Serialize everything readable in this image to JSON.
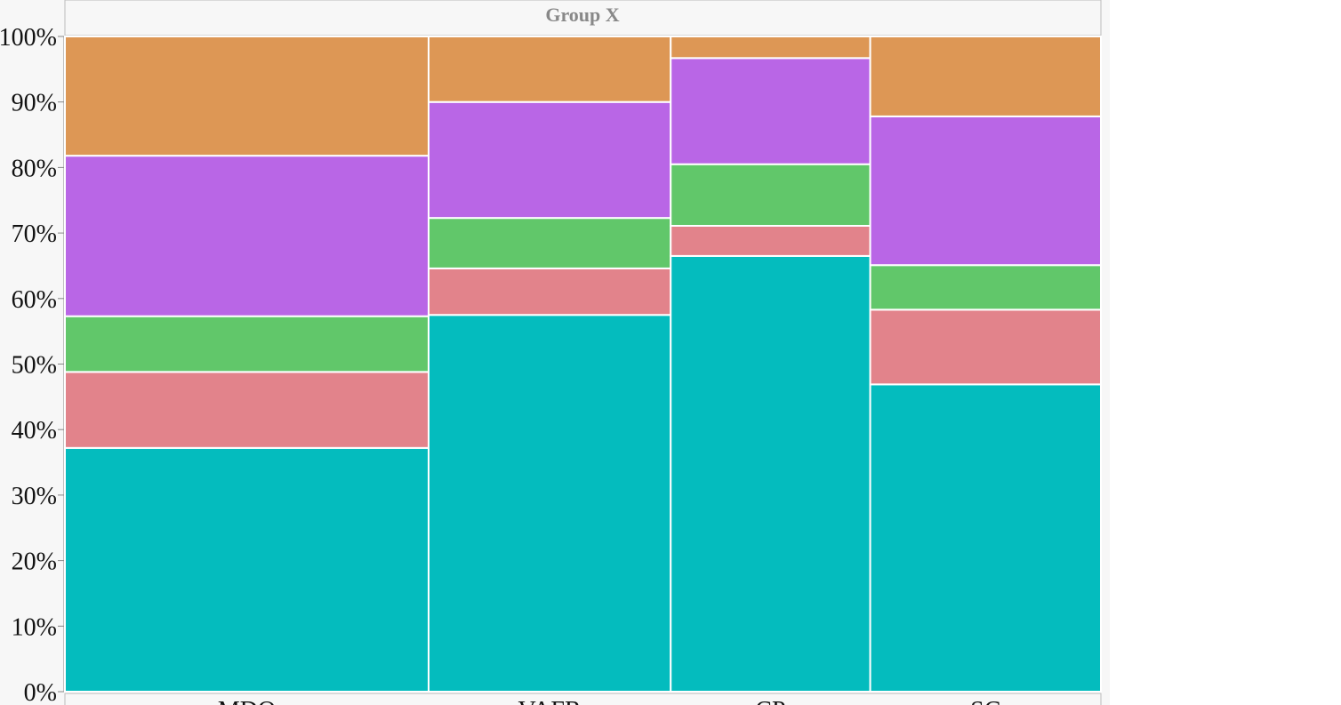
{
  "chart_data": {
    "type": "mosaic",
    "title": "Group X",
    "categories": [
      "MDO",
      "VAFR",
      "CP",
      "SC"
    ],
    "column_shares": [
      35.0,
      23.3,
      19.2,
      22.2
    ],
    "series": [
      {
        "color": "#04bcbe",
        "values": [
          37.2,
          57.5,
          66.5,
          46.9
        ]
      },
      {
        "color": "#e2838b",
        "values": [
          11.6,
          7.1,
          4.6,
          11.4
        ]
      },
      {
        "color": "#61c76a",
        "values": [
          8.5,
          7.7,
          9.4,
          6.8
        ]
      },
      {
        "color": "#b966e6",
        "values": [
          24.5,
          17.7,
          16.2,
          22.7
        ]
      },
      {
        "color": "#dd9755",
        "values": [
          18.2,
          10.0,
          3.3,
          12.2
        ]
      }
    ],
    "ylim": [
      0,
      100
    ],
    "yticks": [
      {
        "value": 0,
        "label": "0%"
      },
      {
        "value": 10,
        "label": "10%"
      },
      {
        "value": 20,
        "label": "20%"
      },
      {
        "value": 30,
        "label": "30%"
      },
      {
        "value": 40,
        "label": "40%"
      },
      {
        "value": 50,
        "label": "50%"
      },
      {
        "value": 60,
        "label": "60%"
      },
      {
        "value": 70,
        "label": "70%"
      },
      {
        "value": 80,
        "label": "80%"
      },
      {
        "value": 90,
        "label": "90%"
      },
      {
        "value": 100,
        "label": "100%"
      }
    ]
  }
}
